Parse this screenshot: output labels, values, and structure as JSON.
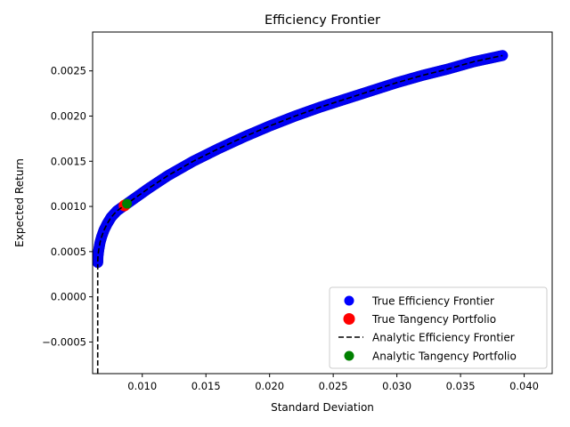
{
  "chart_data": {
    "type": "scatter",
    "title": "Efficiency Frontier",
    "xlabel": "Standard Deviation",
    "ylabel": "Expected Return",
    "xlim": [
      0.0061,
      0.0422
    ],
    "ylim": [
      -0.00085,
      0.00293
    ],
    "x_ticks": [
      0.01,
      0.015,
      0.02,
      0.025,
      0.03,
      0.035,
      0.04
    ],
    "x_tick_labels": [
      "0.010",
      "0.015",
      "0.020",
      "0.025",
      "0.030",
      "0.035",
      "0.040"
    ],
    "y_ticks": [
      -0.0005,
      0.0,
      0.0005,
      0.001,
      0.0015,
      0.002,
      0.0025
    ],
    "y_tick_labels": [
      "−0.0005",
      "0.0000",
      "0.0005",
      "0.0010",
      "0.0015",
      "0.0020",
      "0.0025"
    ],
    "grid": false,
    "legend_position": "bottom-right",
    "series": [
      {
        "name": "True Efficiency Frontier",
        "kind": "scatter",
        "color": "#0000ff",
        "points": [
          [
            0.0065,
            0.00038
          ],
          [
            0.00652,
            0.00045
          ],
          [
            0.00658,
            0.00052
          ],
          [
            0.00668,
            0.0006
          ],
          [
            0.00682,
            0.00067
          ],
          [
            0.007,
            0.00074
          ],
          [
            0.00725,
            0.00081
          ],
          [
            0.00755,
            0.00088
          ],
          [
            0.008,
            0.00095
          ],
          [
            0.0086,
            0.00101
          ],
          [
            0.0095,
            0.0011
          ],
          [
            0.0105,
            0.0012
          ],
          [
            0.012,
            0.00134
          ],
          [
            0.014,
            0.0015
          ],
          [
            0.016,
            0.00164
          ],
          [
            0.018,
            0.00177
          ],
          [
            0.02,
            0.00189
          ],
          [
            0.022,
            0.002
          ],
          [
            0.024,
            0.0021
          ],
          [
            0.026,
            0.00219
          ],
          [
            0.028,
            0.00228
          ],
          [
            0.03,
            0.00237
          ],
          [
            0.032,
            0.00245
          ],
          [
            0.034,
            0.00252
          ],
          [
            0.036,
            0.0026
          ],
          [
            0.0383,
            0.00267
          ]
        ]
      },
      {
        "name": "True Tangency Portfolio",
        "kind": "scatter",
        "color": "#ff0000",
        "points": [
          [
            0.0086,
            0.00101
          ]
        ]
      },
      {
        "name": "Analytic Efficiency Frontier",
        "kind": "line",
        "color": "#000000",
        "points": [
          [
            0.0065,
            -0.00085
          ],
          [
            0.0065,
            0.00038
          ],
          [
            0.00652,
            0.00045
          ],
          [
            0.00658,
            0.00052
          ],
          [
            0.00668,
            0.0006
          ],
          [
            0.00682,
            0.00067
          ],
          [
            0.007,
            0.00074
          ],
          [
            0.00725,
            0.00081
          ],
          [
            0.00755,
            0.00088
          ],
          [
            0.008,
            0.00095
          ],
          [
            0.0086,
            0.00101
          ],
          [
            0.0095,
            0.0011
          ],
          [
            0.0105,
            0.0012
          ],
          [
            0.012,
            0.00134
          ],
          [
            0.014,
            0.0015
          ],
          [
            0.016,
            0.00164
          ],
          [
            0.018,
            0.00177
          ],
          [
            0.02,
            0.00189
          ],
          [
            0.022,
            0.002
          ],
          [
            0.024,
            0.0021
          ],
          [
            0.026,
            0.00219
          ],
          [
            0.028,
            0.00228
          ],
          [
            0.03,
            0.00237
          ],
          [
            0.032,
            0.00245
          ],
          [
            0.034,
            0.00252
          ],
          [
            0.036,
            0.0026
          ],
          [
            0.0383,
            0.00267
          ]
        ]
      },
      {
        "name": "Analytic Tangency Portfolio",
        "kind": "scatter",
        "color": "#008000",
        "points": [
          [
            0.0088,
            0.00103
          ]
        ]
      }
    ]
  }
}
